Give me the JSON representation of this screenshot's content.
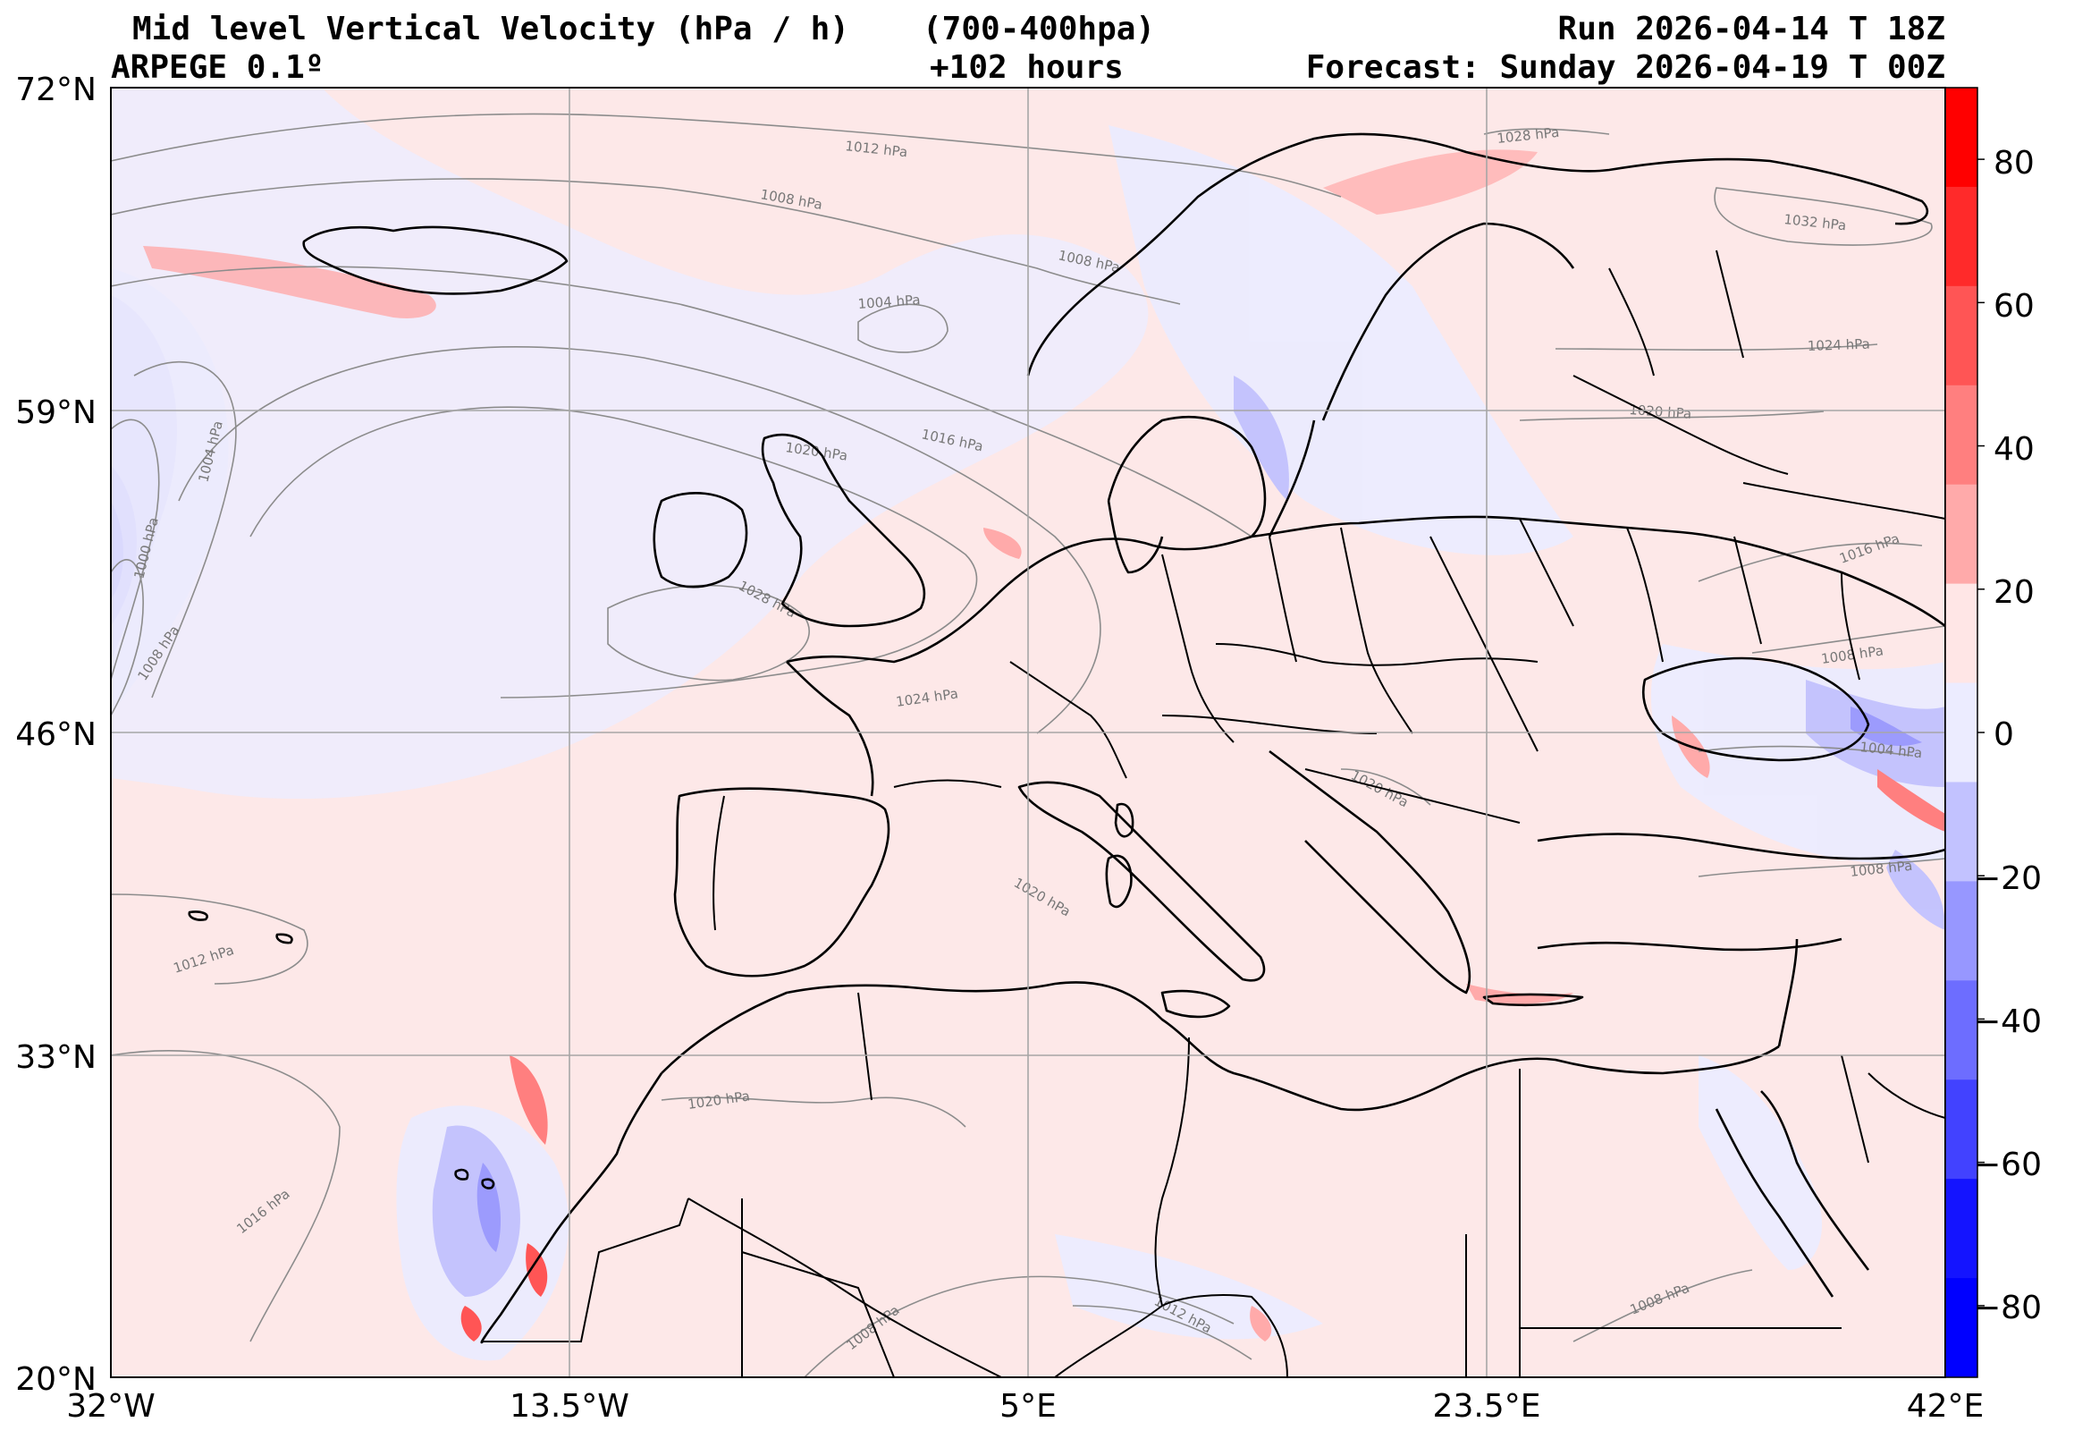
{
  "header": {
    "title": "Mid level Vertical Velocity (hPa / h)",
    "layer": "(700-400hpa)",
    "model": "ARPEGE 0.1º",
    "lead": "+102 hours",
    "run": "Run 2026-04-14 T 18Z",
    "forecast": "Forecast: Sunday 2026-04-19 T 00Z"
  },
  "map": {
    "lon_range": [
      -32,
      42
    ],
    "lat_range": [
      20,
      72
    ],
    "lat_ticks": [
      "72°N",
      "59°N",
      "46°N",
      "33°N",
      "20°N"
    ],
    "lon_ticks": [
      "32°W",
      "13.5°W",
      "5°E",
      "23.5°E",
      "42°E"
    ]
  },
  "colorbar": {
    "ticks": [
      "80",
      "60",
      "40",
      "20",
      "0",
      "−20",
      "−40",
      "−60",
      "−80"
    ],
    "range": [
      -90,
      90
    ],
    "colors_top_to_bottom": [
      "#ff0000",
      "#ff2a2a",
      "#ff5555",
      "#ff7f7f",
      "#ffaaaa",
      "#ffe6e6",
      "#ececff",
      "#c2c2ff",
      "#9797ff",
      "#6d6dff",
      "#4242ff",
      "#1414ff",
      "#0000ff"
    ]
  },
  "isobars": [
    "1012 hPa",
    "1008 hPa",
    "1008 hPa",
    "1004 hPa",
    "1016 hPa",
    "1020 hPa",
    "1028 hPa",
    "1024 hPa",
    "1020 hPa",
    "1012 hPa",
    "1016 hPa",
    "1020 hPa",
    "1008 hPa",
    "1012 hPa",
    "1008 hPa",
    "1028 hPa",
    "1032 hPa",
    "1024 hPa",
    "1020 hPa",
    "1016 hPa",
    "1008 hPa",
    "1004 hPa",
    "1008 hPa",
    "1020 hPa",
    "1004 hPa",
    "1000 hPa",
    "1008 hPa"
  ]
}
